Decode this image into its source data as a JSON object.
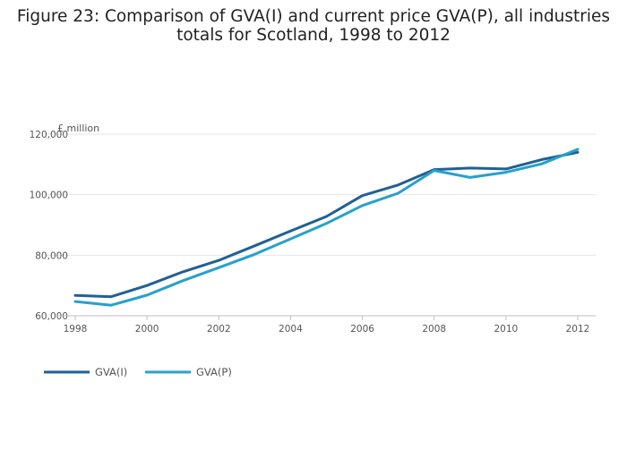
{
  "title_line1": "Figure 23: Comparison of GVA(I) and current price GVA(P), all industries",
  "title_line2": "totals for Scotland, 1998 to 2012",
  "chart_data": {
    "type": "line",
    "title": "Figure 23: Comparison of GVA(I) and current price GVA(P), all industries totals for Scotland, 1998 to 2012",
    "ylabel": "£ million",
    "x": [
      1998,
      1999,
      2000,
      2001,
      2002,
      2003,
      2004,
      2005,
      2006,
      2007,
      2008,
      2009,
      2010,
      2011,
      2012
    ],
    "xticks": [
      "1998",
      "2000",
      "2002",
      "2004",
      "2006",
      "2008",
      "2010",
      "2012"
    ],
    "yticks": [
      "60,000",
      "80,000",
      "100,000",
      "120,000"
    ],
    "ylim": [
      60000,
      120000
    ],
    "grid": true,
    "legend": "bottom-left",
    "series": [
      {
        "name": "GVA(I)",
        "color": "#206095",
        "values": [
          66700,
          66300,
          70000,
          74500,
          78300,
          83100,
          88000,
          92800,
          99700,
          103200,
          108300,
          108800,
          108500,
          111600,
          114000
        ]
      },
      {
        "name": "GVA(P)",
        "color": "#27a0cc",
        "values": [
          64700,
          63500,
          66800,
          71600,
          75900,
          80300,
          85400,
          90500,
          96400,
          100500,
          108000,
          105700,
          107400,
          110200,
          115000
        ]
      }
    ]
  }
}
